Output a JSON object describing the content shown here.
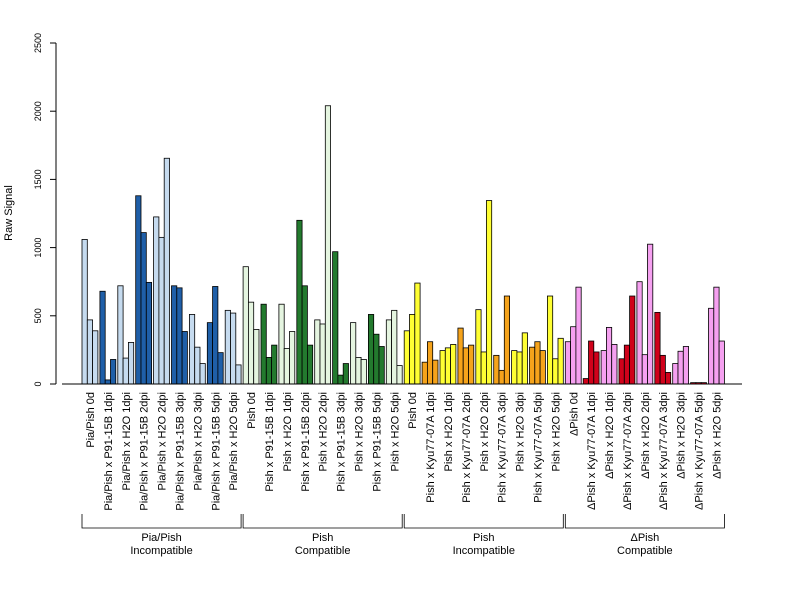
{
  "chart_data": {
    "type": "bar",
    "ylabel": "Raw Signal",
    "ylim": [
      0,
      2500
    ],
    "yticks": [
      0,
      500,
      1000,
      1500,
      2000,
      2500
    ],
    "categories": [
      "Pia/Pish 0d",
      "Pia/Pish x P91-15B 1dpi",
      "Pia/Pish x H2O 1dpi",
      "Pia/Pish x P91-15B 2dpi",
      "Pia/Pish x H2O 2dpi",
      "Pia/Pish x P91-15B 3dpi",
      "Pia/Pish x H2O 3dpi",
      "Pia/Pish x P91-15B 5dpi",
      "Pia/Pish x H2O 5dpi",
      "Pish 0d",
      "Pish x P91-15B 1dpi",
      "Pish x H2O 1dpi",
      "Pish x P91-15B 2dpi",
      "Pish x H2O 2dpi",
      "Pish x P91-15B 3dpi",
      "Pish x H2O 3dpi",
      "Pish x P91-15B 5dpi",
      "Pish x H2O 5dpi",
      "Pish 0d",
      "Pish x Kyu77-07A 1dpi",
      "Pish x H2O 1dpi",
      "Pish x Kyu77-07A 2dpi",
      "Pish x H2O 2dpi",
      "Pish x Kyu77-07A 3dpi",
      "Pish x H2O 3dpi",
      "Pish x Kyu77-07A 5dpi",
      "Pish x H2O 5dpi",
      "ΔPish 0d",
      "ΔPish x Kyu77-07A 1dpi",
      "ΔPish x H2O 1dpi",
      "ΔPish x Kyu77-07A 2dpi",
      "ΔPish x H2O 2dpi",
      "ΔPish x Kyu77-07A 3dpi",
      "ΔPish x H2O 3dpi",
      "ΔPish x Kyu77-07A 5dpi",
      "ΔPish x H2O 5dpi"
    ],
    "values": [
      [
        1060,
        470,
        390
      ],
      [
        680,
        30,
        180
      ],
      [
        720,
        190,
        305
      ],
      [
        1380,
        1110,
        745
      ],
      [
        1225,
        1075,
        1655
      ],
      [
        720,
        705,
        385
      ],
      [
        510,
        270,
        150
      ],
      [
        450,
        715,
        230
      ],
      [
        540,
        520,
        140
      ],
      [
        860,
        600,
        400
      ],
      [
        585,
        195,
        285
      ],
      [
        585,
        260,
        385
      ],
      [
        1200,
        720,
        285
      ],
      [
        470,
        440,
        2040
      ],
      [
        970,
        65,
        150
      ],
      [
        450,
        195,
        180
      ],
      [
        510,
        365,
        275
      ],
      [
        470,
        540,
        135
      ],
      [
        390,
        510,
        740
      ],
      [
        160,
        310,
        175
      ],
      [
        245,
        265,
        290
      ],
      [
        410,
        265,
        285
      ],
      [
        545,
        235,
        1345
      ],
      [
        210,
        100,
        645
      ],
      [
        245,
        235,
        375
      ],
      [
        270,
        310,
        245
      ],
      [
        645,
        185,
        335
      ],
      [
        310,
        420,
        710
      ],
      [
        40,
        315,
        235
      ],
      [
        245,
        415,
        290
      ],
      [
        185,
        285,
        645
      ],
      [
        750,
        215,
        1025
      ],
      [
        525,
        210,
        85
      ],
      [
        150,
        240,
        275
      ],
      [
        10,
        10,
        10
      ],
      [
        555,
        710,
        315
      ]
    ],
    "bar_colors": [
      "#c6dbef",
      "#1f5fa8",
      "#c6dbef",
      "#1f5fa8",
      "#c6dbef",
      "#1f5fa8",
      "#c6dbef",
      "#1f5fa8",
      "#c6dbef",
      "#e5f5e0",
      "#237a2e",
      "#e5f5e0",
      "#237a2e",
      "#e5f5e0",
      "#237a2e",
      "#e5f5e0",
      "#237a2e",
      "#e5f5e0",
      "#ffff33",
      "#f5a31b",
      "#ffff33",
      "#f5a31b",
      "#ffff33",
      "#f5a31b",
      "#ffff33",
      "#f5a31b",
      "#ffff33",
      "#f5a0f0",
      "#d0021b",
      "#f5a0f0",
      "#d0021b",
      "#f5a0f0",
      "#d0021b",
      "#f5a0f0",
      "#d0021b",
      "#f5a0f0"
    ],
    "groups": [
      {
        "line1": "Pia/Pish",
        "line2": "Incompatible",
        "start": 0,
        "end": 8
      },
      {
        "line1": "Pish",
        "line2": "Compatible",
        "start": 9,
        "end": 17
      },
      {
        "line1": "Pish",
        "line2": "Incompatible",
        "start": 18,
        "end": 26
      },
      {
        "line1": "ΔPish",
        "line2": "Compatible",
        "start": 27,
        "end": 35
      }
    ],
    "grid": false
  }
}
